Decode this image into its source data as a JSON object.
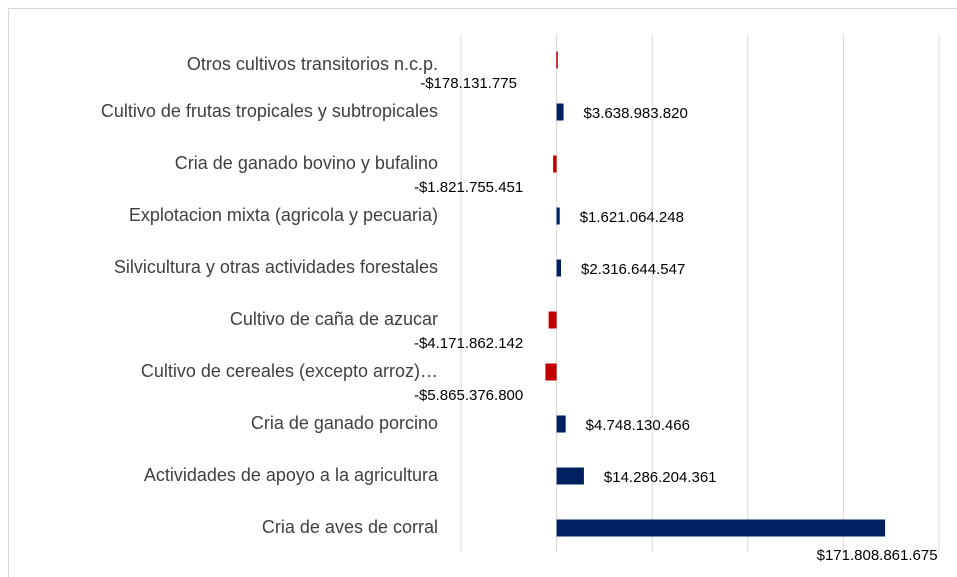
{
  "chart_data": {
    "type": "hbar",
    "categories": [
      "Otros cultivos transitorios n.c.p.",
      "Cultivo de frutas tropicales y subtropicales",
      "Cria de ganado bovino y bufalino",
      "Explotacion mixta (agricola y pecuaria)",
      "Silvicultura y otras actividades forestales",
      "Cultivo de caña de azucar",
      "Cultivo de cereales (excepto arroz)…",
      "Cria de ganado porcino",
      "Actividades de apoyo a la agricultura",
      "Cria de aves de corral"
    ],
    "values": [
      -178131775,
      3638983820,
      -1821755451,
      1621064248,
      2316644547,
      -4171862142,
      -5865376800,
      4748130466,
      14286204361,
      171808861675
    ],
    "value_labels": [
      "-$178.131.775",
      "$3.638.983.820",
      "-$1.821.755.451",
      "$1.621.064.248",
      "$2.316.644.547",
      "-$4.171.862.142",
      "-$5.865.376.800",
      "$4.748.130.466",
      "$14.286.204.361",
      "$171.808.861.675"
    ],
    "color": "#002060",
    "negative_color": "#c00000",
    "xlim": [
      -50000000000,
      200000000000
    ],
    "xticks": [
      -50000000000,
      0,
      50000000000,
      100000000000,
      150000000000,
      200000000000
    ],
    "grid": true
  }
}
